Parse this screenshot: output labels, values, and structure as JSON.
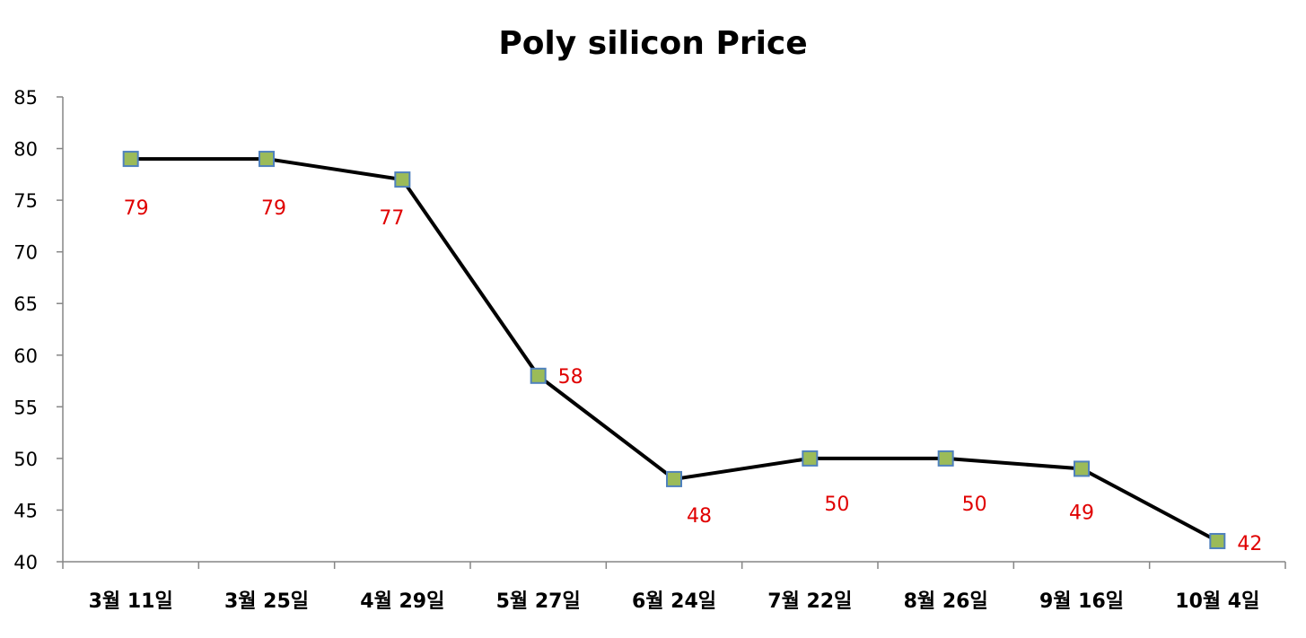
{
  "chart_data": {
    "type": "line",
    "title": "Poly silicon Price",
    "xlabel": "",
    "ylabel": "",
    "categories": [
      "3월 11일",
      "3월 25일",
      "4월 29일",
      "5월 27일",
      "6월 24일",
      "7월 22일",
      "8월 26일",
      "9월 16일",
      "10월 4일"
    ],
    "series": [
      {
        "values": [
          79,
          79,
          77,
          58,
          48,
          50,
          50,
          49,
          42
        ]
      }
    ],
    "ylim": [
      40,
      85
    ],
    "yticks": [
      40,
      45,
      50,
      55,
      60,
      65,
      70,
      75,
      80,
      85
    ],
    "grid": false,
    "legend": "none",
    "colors": {
      "line": "#000000",
      "marker_fill": "#9bbb59",
      "marker_stroke": "#4f81bd",
      "data_label": "#e00000"
    }
  }
}
